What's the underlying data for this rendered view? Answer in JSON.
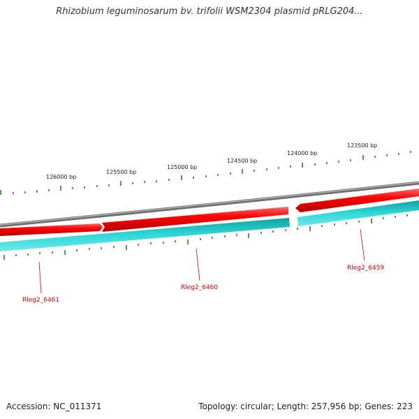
{
  "title": "Rhizobium leguminosarum bv. trifolii WSM2304 plasmid pRLG204...",
  "footer": {
    "accession": "Accession: NC_011371",
    "summary": "Topology: circular; Length: 257,956 bp; Genes: 223"
  },
  "ruler": {
    "labels": [
      "126000 bp",
      "125500 bp",
      "125000 bp",
      "124500 bp",
      "124000 bp",
      "123500 bp"
    ]
  },
  "genes": [
    {
      "label": "Rleg2_6461",
      "strand": "forward"
    },
    {
      "label": "Rleg2_6460",
      "strand": "forward"
    },
    {
      "label": "Rleg2_6459",
      "strand": "forward"
    }
  ],
  "colors": {
    "backbone": "#808080",
    "forward_gene": "#ff0000",
    "reverse_track": "#20c8c8",
    "ticks": "#1a7a1a",
    "gene_label": "#cc0000"
  }
}
